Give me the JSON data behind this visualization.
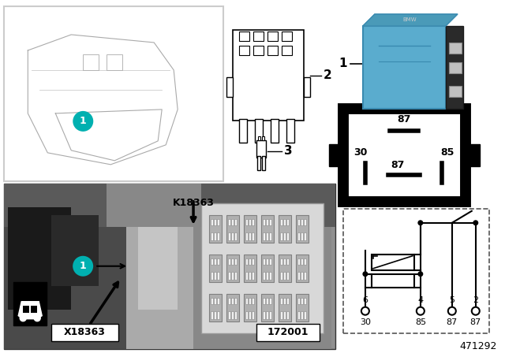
{
  "bg_color": "#ffffff",
  "part_number": "471292",
  "ref_number": "172001",
  "connector_label": "K18363",
  "location_label": "X18363",
  "relay_color": "#5aacce",
  "teal_color": "#00b0b0",
  "pin_numbers": [
    "6",
    "4",
    "5",
    "2"
  ],
  "pin_names": [
    "30",
    "85",
    "87",
    "87"
  ],
  "pd_labels": [
    "87",
    "30",
    "87",
    "85"
  ],
  "photo_bg": "#909090",
  "photo_dark": "#555555",
  "photo_mid": "#787878",
  "photo_light": "#b8b8b8",
  "photo_lighter": "#d0d0d0"
}
